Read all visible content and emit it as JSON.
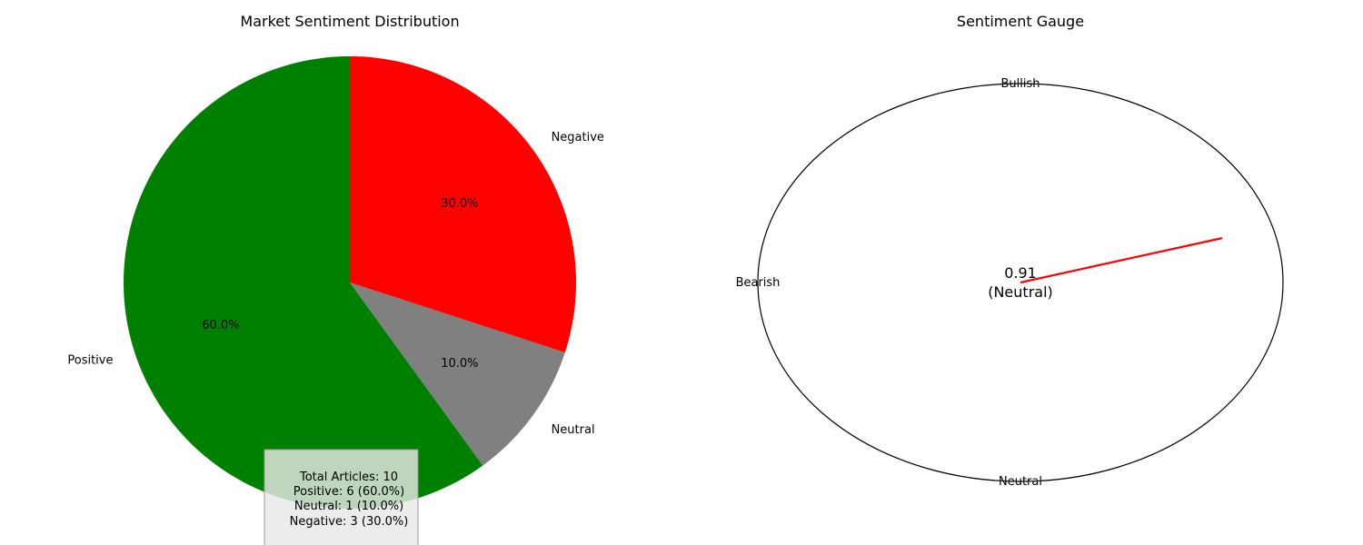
{
  "chart_data": [
    {
      "type": "pie",
      "title": "Market Sentiment Distribution",
      "slices": [
        {
          "label": "Positive",
          "value": 60.0,
          "pct_label": "60.0%",
          "color": "#008000"
        },
        {
          "label": "Neutral",
          "value": 10.0,
          "pct_label": "10.0%",
          "color": "#808080"
        },
        {
          "label": "Negative",
          "value": 30.0,
          "pct_label": "30.0%",
          "color": "#ff0000"
        }
      ],
      "stats_box": {
        "lines": [
          "Total Articles: 10",
          "Positive: 6 (60.0%)",
          "Neutral: 1 (10.0%)",
          "Negative: 3 (30.0%)"
        ]
      }
    },
    {
      "type": "gauge",
      "title": "Sentiment Gauge",
      "value": 0.91,
      "value_text": "0.91",
      "state_text": "(Neutral)",
      "needle_color": "#ff0000",
      "labels": {
        "top": "Bullish",
        "left": "Bearish",
        "bottom": "Neutral"
      }
    }
  ]
}
